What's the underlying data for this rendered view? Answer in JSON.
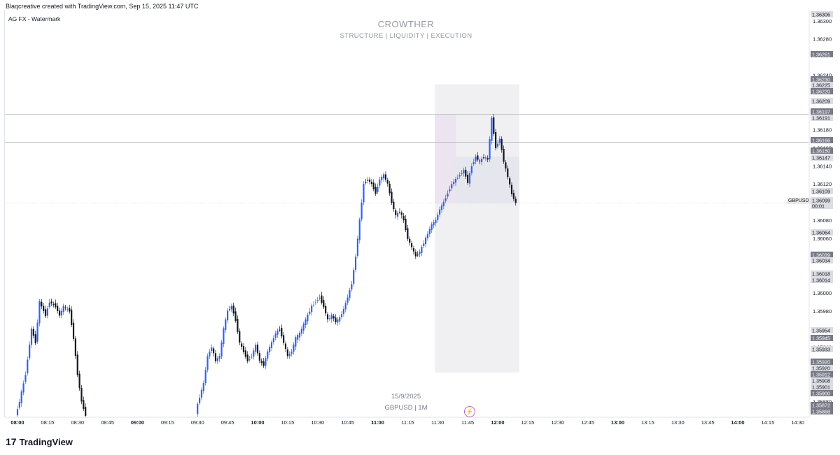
{
  "header": {
    "credit": "Blaqcreative created with TradingView.com, Sep 15, 2025 11:47 UTC"
  },
  "indicator_label": "AG FX - Watermark",
  "watermark": {
    "title": "CROWTHER",
    "subtitle": "STRUCTURE  | LIQUIDITY  |  EXECUTION",
    "date": "15/9/2025",
    "symbol_line": "GBPUSD | 1M"
  },
  "branding": {
    "logo_mark": "17",
    "name": "TradingView"
  },
  "symbol_tag": "GBPUSD",
  "icons": {
    "bolt": "lightning-icon"
  },
  "colors": {
    "bull": "#2962ff",
    "bear": "#131722",
    "zone": "#f0f0f3",
    "label_dark": "#787b86",
    "label_light": "#dcdde2",
    "accent": "#c25dcf"
  },
  "chart_data": {
    "type": "candlestick",
    "symbol": "GBPUSD",
    "interval": "1M",
    "ylim": [
      1.35868,
      1.36306
    ],
    "x_ticks": [
      "08:00",
      "08:15",
      "08:30",
      "08:45",
      "09:00",
      "09:15",
      "09:30",
      "09:45",
      "10:00",
      "10:15",
      "10:30",
      "10:45",
      "11:00",
      "11:15",
      "11:30",
      "11:45",
      "12:00",
      "12:15",
      "12:30",
      "12:45",
      "13:00",
      "13:15",
      "13:30",
      "13:45",
      "14:00",
      "14:15",
      "14:30"
    ],
    "x_ticks_bold": [
      "08:00",
      "09:00",
      "10:00",
      "11:00",
      "12:00",
      "13:00",
      "14:00"
    ],
    "y_grid_labels": [
      "1.36300",
      "1.36280",
      "1.36240",
      "1.36180",
      "1.36160",
      "1.36140",
      "1.36120",
      "1.36080",
      "1.36060",
      "1.36000",
      "1.35980",
      "1.35960",
      "1.35940",
      "1.35880"
    ],
    "price_labels": [
      {
        "text": "1.36306",
        "style": "light"
      },
      {
        "text": "1.36261",
        "style": "dark"
      },
      {
        "text": "1.36230",
        "style": "dark"
      },
      {
        "text": "1.36225",
        "style": "light"
      },
      {
        "text": "1.36220",
        "style": "dark"
      },
      {
        "text": "1.36209",
        "style": "light"
      },
      {
        "text": "1.36197",
        "style": "dark"
      },
      {
        "text": "1.36191",
        "style": "light"
      },
      {
        "text": "1.36166",
        "style": "dark"
      },
      {
        "text": "1.36150",
        "style": "dark"
      },
      {
        "text": "1.36147",
        "style": "light"
      },
      {
        "text": "1.36109",
        "style": "light"
      },
      {
        "text": "1.36099",
        "style": "light"
      },
      {
        "text": "00:01",
        "style": "light"
      },
      {
        "text": "1.36064",
        "style": "light"
      },
      {
        "text": "1.36039",
        "style": "dark"
      },
      {
        "text": "1.36034",
        "style": "light"
      },
      {
        "text": "1.36018",
        "style": "light"
      },
      {
        "text": "1.36014",
        "style": "light"
      },
      {
        "text": "1.35954",
        "style": "light"
      },
      {
        "text": "1.35945",
        "style": "dark"
      },
      {
        "text": "1.35933",
        "style": "light"
      },
      {
        "text": "1.35920",
        "style": "dark"
      },
      {
        "text": "1.35920",
        "style": "light"
      },
      {
        "text": "1.35912",
        "style": "dark"
      },
      {
        "text": "1.35908",
        "style": "light"
      },
      {
        "text": "1.35901",
        "style": "light"
      },
      {
        "text": "1.35900",
        "style": "dark"
      },
      {
        "text": "1.35872",
        "style": "dark"
      },
      {
        "text": "1.35868",
        "style": "dark"
      }
    ],
    "levels": [
      1.36197,
      1.36166
    ],
    "current_price": 1.36099,
    "zone": {
      "start": "11:30",
      "end": "12:08",
      "high": 1.3623,
      "low": 1.35912
    },
    "trend_path": [
      [
        "08:00",
        1.35864
      ],
      [
        "08:02",
        1.3588
      ],
      [
        "08:05",
        1.3591
      ],
      [
        "08:08",
        1.3596
      ],
      [
        "08:10",
        1.35945
      ],
      [
        "08:12",
        1.3599
      ],
      [
        "08:15",
        1.35975
      ],
      [
        "08:17",
        1.3599
      ],
      [
        "08:20",
        1.35985
      ],
      [
        "08:22",
        1.35975
      ],
      [
        "08:24",
        1.35985
      ],
      [
        "08:27",
        1.3598
      ],
      [
        "08:29",
        1.3595
      ],
      [
        "08:31",
        1.3591
      ],
      [
        "08:33",
        1.3588
      ],
      [
        "08:35",
        1.35865
      ],
      [
        "09:30",
        1.35868
      ],
      [
        "09:32",
        1.35885
      ],
      [
        "09:34",
        1.359
      ],
      [
        "09:36",
        1.3593
      ],
      [
        "09:38",
        1.3594
      ],
      [
        "09:40",
        1.35925
      ],
      [
        "09:42",
        1.3593
      ],
      [
        "09:44",
        1.3596
      ],
      [
        "09:46",
        1.3598
      ],
      [
        "09:48",
        1.35985
      ],
      [
        "09:50",
        1.3597
      ],
      [
        "09:52",
        1.35945
      ],
      [
        "09:54",
        1.35935
      ],
      [
        "09:56",
        1.35925
      ],
      [
        "09:58",
        1.3593
      ],
      [
        "10:00",
        1.35942
      ],
      [
        "10:02",
        1.35925
      ],
      [
        "10:04",
        1.3592
      ],
      [
        "10:06",
        1.35935
      ],
      [
        "10:08",
        1.35945
      ],
      [
        "10:10",
        1.35955
      ],
      [
        "10:12",
        1.3596
      ],
      [
        "10:14",
        1.35945
      ],
      [
        "10:16",
        1.3593
      ],
      [
        "10:18",
        1.35935
      ],
      [
        "10:20",
        1.3595
      ],
      [
        "10:22",
        1.35955
      ],
      [
        "10:24",
        1.35965
      ],
      [
        "10:26",
        1.35975
      ],
      [
        "10:28",
        1.35985
      ],
      [
        "10:30",
        1.3599
      ],
      [
        "10:32",
        1.35995
      ],
      [
        "10:34",
        1.35985
      ],
      [
        "10:36",
        1.3597
      ],
      [
        "10:38",
        1.35975
      ],
      [
        "10:40",
        1.35968
      ],
      [
        "10:42",
        1.35972
      ],
      [
        "10:44",
        1.35982
      ],
      [
        "10:46",
        1.35995
      ],
      [
        "10:48",
        1.3601
      ],
      [
        "10:50",
        1.3604
      ],
      [
        "10:52",
        1.3608
      ],
      [
        "10:54",
        1.3612
      ],
      [
        "10:56",
        1.36125
      ],
      [
        "10:58",
        1.3612
      ],
      [
        "11:00",
        1.3611
      ],
      [
        "11:02",
        1.36125
      ],
      [
        "11:04",
        1.3613
      ],
      [
        "11:06",
        1.3612
      ],
      [
        "11:08",
        1.361
      ],
      [
        "11:10",
        1.36085
      ],
      [
        "11:12",
        1.3609
      ],
      [
        "11:14",
        1.3608
      ],
      [
        "11:16",
        1.3606
      ],
      [
        "11:18",
        1.3605
      ],
      [
        "11:20",
        1.3604
      ],
      [
        "11:22",
        1.36045
      ],
      [
        "11:24",
        1.36055
      ],
      [
        "11:26",
        1.36065
      ],
      [
        "11:28",
        1.36075
      ],
      [
        "11:30",
        1.3608
      ],
      [
        "11:32",
        1.36092
      ],
      [
        "11:34",
        1.361
      ],
      [
        "11:36",
        1.3611
      ],
      [
        "11:38",
        1.3612
      ],
      [
        "11:40",
        1.36125
      ],
      [
        "11:42",
        1.3613
      ],
      [
        "11:44",
        1.36135
      ],
      [
        "11:46",
        1.36122
      ],
      [
        "11:48",
        1.3614
      ],
      [
        "11:50",
        1.3615
      ],
      [
        "11:52",
        1.36145
      ],
      [
        "11:54",
        1.3615
      ],
      [
        "11:56",
        1.36147
      ],
      [
        "11:58",
        1.36192
      ],
      [
        "12:00",
        1.3616
      ],
      [
        "12:02",
        1.3617
      ],
      [
        "12:04",
        1.36145
      ],
      [
        "12:06",
        1.36128
      ],
      [
        "12:08",
        1.36109
      ],
      [
        "12:10",
        1.36099
      ]
    ]
  }
}
